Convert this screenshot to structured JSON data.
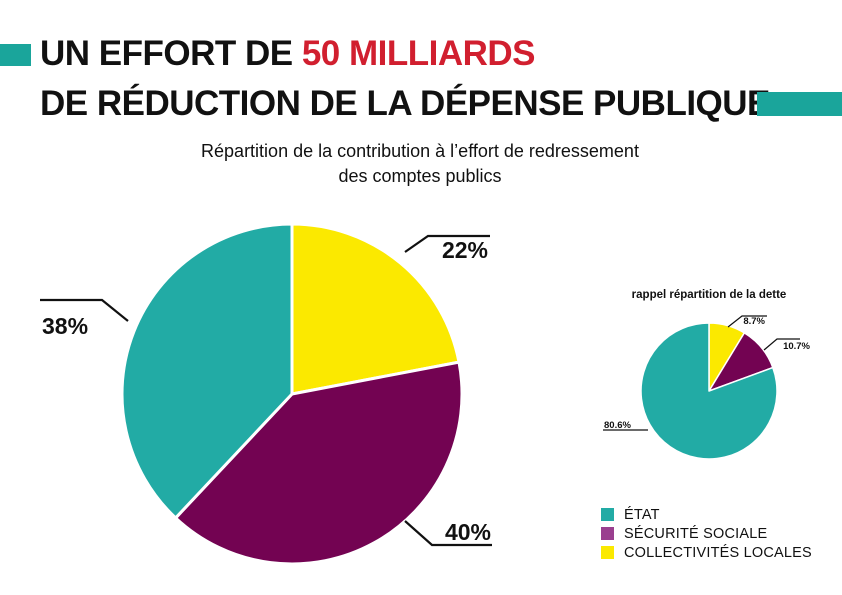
{
  "colors": {
    "etat": "#22aba5",
    "securite_sociale": "#730352",
    "collectivites_locales": "#fbe900",
    "title_accent": "#d11f2f",
    "accent_bar": "#1aa59b",
    "legend_securite_sociale": "#9a3f8f"
  },
  "header": {
    "title_line1_prefix": "UN EFFORT DE ",
    "title_line1_accent": "50 MILLIARDS",
    "title_line2": "DE RÉDUCTION DE LA DÉPENSE PUBLIQUE",
    "subtitle_line1": "Répartition de la contribution à l’effort de redressement",
    "subtitle_line2": "des comptes publics"
  },
  "chart_data": [
    {
      "type": "pie",
      "title": "",
      "slices": [
        {
          "key": "collectivites_locales",
          "value": 22,
          "label": "22%"
        },
        {
          "key": "securite_sociale",
          "value": 40,
          "label": "40%"
        },
        {
          "key": "etat",
          "value": 38,
          "label": "38%"
        }
      ]
    },
    {
      "type": "pie",
      "title": "rappel répartition de la dette",
      "slices": [
        {
          "key": "collectivites_locales",
          "value": 8.7,
          "label": "8.7%"
        },
        {
          "key": "securite_sociale",
          "value": 10.7,
          "label": "10.7%"
        },
        {
          "key": "etat",
          "value": 80.6,
          "label": "80.6%"
        }
      ]
    }
  ],
  "legend": [
    {
      "key": "etat",
      "label": "ÉTAT"
    },
    {
      "key": "securite_sociale",
      "label": "SÉCURITÉ SOCIALE"
    },
    {
      "key": "collectivites_locales",
      "label": "COLLECTIVITÉS LOCALES"
    }
  ]
}
